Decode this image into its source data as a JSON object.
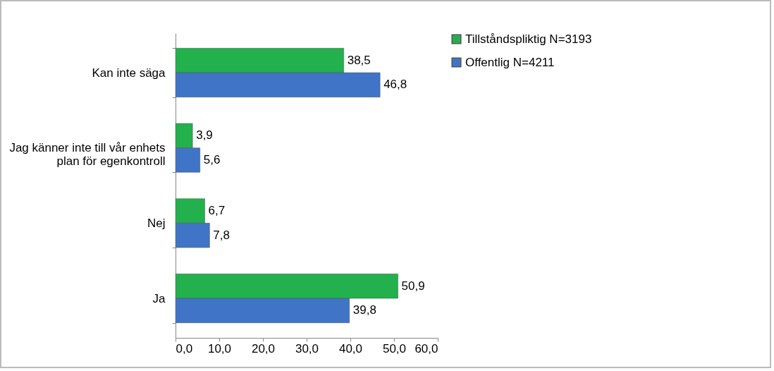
{
  "chart_data": {
    "type": "bar",
    "orientation": "horizontal",
    "categories": [
      "Kan inte säga",
      "Jag känner inte till vår enhets plan för egenkontroll",
      "Nej",
      "Ja"
    ],
    "series": [
      {
        "name": "Tillståndspliktig N=3193",
        "color": "#22b14c",
        "values": [
          38.5,
          3.9,
          6.7,
          50.9
        ],
        "value_labels": [
          "38,5",
          "3,9",
          "6,7",
          "50,9"
        ]
      },
      {
        "name": "Offentlig N=4211",
        "color": "#3f74c6",
        "values": [
          46.8,
          5.6,
          7.8,
          39.8
        ],
        "value_labels": [
          "46,8",
          "5,6",
          "7,8",
          "39,8"
        ]
      }
    ],
    "xlim": [
      0,
      60
    ],
    "xticks": [
      {
        "value": 0,
        "label": "0,0"
      },
      {
        "value": 10,
        "label": "10,0"
      },
      {
        "value": 20,
        "label": "20,0"
      },
      {
        "value": 30,
        "label": "30,0"
      },
      {
        "value": 40,
        "label": "40,0"
      },
      {
        "value": 50,
        "label": "50,0"
      },
      {
        "value": 60,
        "label": "60,0"
      }
    ],
    "grid": false,
    "legend": "right"
  }
}
